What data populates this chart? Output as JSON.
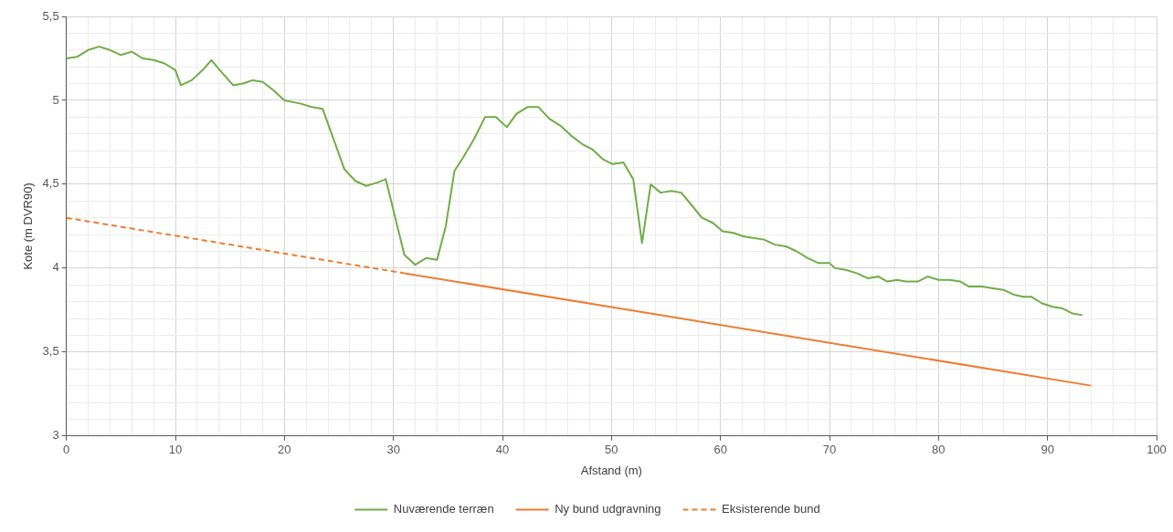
{
  "chart_data": {
    "type": "line",
    "xlabel": "Afstand (m)",
    "ylabel": "Kote (m DVR90)",
    "xlim": [
      0,
      100
    ],
    "xticks": [
      0,
      {
        "value": 2,
        "label": null
      },
      {
        "value": 4,
        "label": null
      },
      {
        "value": 6,
        "label": null
      },
      {
        "value": 8,
        "label": null
      },
      10,
      {
        "value": 12,
        "label": null
      },
      {
        "value": 14,
        "label": null
      },
      {
        "value": 16,
        "label": null
      },
      {
        "value": 18,
        "label": null
      },
      20,
      {
        "value": 22,
        "label": null
      },
      {
        "value": 24,
        "label": null
      },
      {
        "value": 26,
        "label": null
      },
      {
        "value": 28,
        "label": null
      },
      30,
      {
        "value": 32,
        "label": null
      },
      {
        "value": 34,
        "label": null
      },
      {
        "value": 36,
        "label": null
      },
      {
        "value": 38,
        "label": null
      },
      40,
      {
        "value": 42,
        "label": null
      },
      {
        "value": 44,
        "label": null
      },
      {
        "value": 46,
        "label": null
      },
      {
        "value": 48,
        "label": null
      },
      50,
      {
        "value": 52,
        "label": null
      },
      {
        "value": 54,
        "label": null
      },
      {
        "value": 56,
        "label": null
      },
      {
        "value": 58,
        "label": null
      },
      60,
      {
        "value": 62,
        "label": null
      },
      {
        "value": 64,
        "label": null
      },
      {
        "value": 66,
        "label": null
      },
      {
        "value": 68,
        "label": null
      },
      70,
      {
        "value": 72,
        "label": null
      },
      {
        "value": 74,
        "label": null
      },
      {
        "value": 76,
        "label": null
      },
      {
        "value": 78,
        "label": null
      },
      80,
      {
        "value": 82,
        "label": null
      },
      {
        "value": 84,
        "label": null
      },
      {
        "value": 86,
        "label": null
      },
      {
        "value": 88,
        "label": null
      },
      90,
      {
        "value": 92,
        "label": null
      },
      {
        "value": 94,
        "label": null
      },
      {
        "value": 96,
        "label": null
      },
      {
        "value": 98,
        "label": null
      },
      100
    ],
    "ylim": [
      3,
      5.5
    ],
    "yticks": [
      3,
      {
        "value": 3.1,
        "label": null
      },
      {
        "value": 3.2,
        "label": null
      },
      {
        "value": 3.3,
        "label": null
      },
      {
        "value": 3.4,
        "label": null
      },
      {
        "value": 3.5,
        "label": "3,5"
      },
      {
        "value": 3.6,
        "label": null
      },
      {
        "value": 3.7,
        "label": null
      },
      {
        "value": 3.8,
        "label": null
      },
      {
        "value": 3.9,
        "label": null
      },
      4,
      {
        "value": 4.1,
        "label": null
      },
      {
        "value": 4.2,
        "label": null
      },
      {
        "value": 4.3,
        "label": null
      },
      {
        "value": 4.4,
        "label": null
      },
      {
        "value": 4.5,
        "label": "4,5"
      },
      {
        "value": 4.6,
        "label": null
      },
      {
        "value": 4.7,
        "label": null
      },
      {
        "value": 4.8,
        "label": null
      },
      {
        "value": 4.9,
        "label": null
      },
      5,
      {
        "value": 5.1,
        "label": null
      },
      {
        "value": 5.2,
        "label": null
      },
      {
        "value": 5.3,
        "label": null
      },
      {
        "value": 5.4,
        "label": null
      },
      {
        "value": 5.5,
        "label": "5,5"
      }
    ],
    "grid": true,
    "legend": "bottom",
    "marker": "none",
    "series": [
      {
        "name": "Nuværende terræn",
        "color": "#70ad47",
        "line_style": "solid",
        "x": [
          0,
          1,
          2,
          3,
          4,
          5,
          6,
          7,
          8,
          9,
          10,
          10.5,
          11.5,
          12.5,
          13.3,
          14.2,
          15.3,
          16.2,
          17.1,
          18,
          19,
          20,
          21.5,
          22.5,
          23.5,
          25.5,
          26.5,
          27.5,
          28.5,
          29.3,
          31,
          32,
          33,
          34,
          34.8,
          35.6,
          36.4,
          37.4,
          38.4,
          39.4,
          40.4,
          41.3,
          42.3,
          43.3,
          44.3,
          45.3,
          46.3,
          47.3,
          48.2,
          49.2,
          50.1,
          51.1,
          52,
          52.8,
          53.6,
          54.5,
          55.5,
          56.4,
          57.3,
          58.3,
          59.3,
          60.2,
          61.2,
          62.1,
          63,
          64,
          65,
          66,
          67,
          68,
          69,
          70,
          70.5,
          71.5,
          72.5,
          73.5,
          74.5,
          75.3,
          76.2,
          77,
          78.1,
          79,
          80,
          81,
          82,
          82.8,
          84,
          85,
          86,
          87,
          87.8,
          88.5,
          89.5,
          90.5,
          91.4,
          92.3,
          93.2
        ],
        "values": [
          5.25,
          5.26,
          5.3,
          5.32,
          5.3,
          5.27,
          5.29,
          5.25,
          5.24,
          5.22,
          5.18,
          5.09,
          5.12,
          5.18,
          5.24,
          5.17,
          5.09,
          5.1,
          5.12,
          5.11,
          5.06,
          5,
          4.98,
          4.96,
          4.95,
          4.59,
          4.52,
          4.49,
          4.51,
          4.53,
          4.08,
          4.02,
          4.06,
          4.05,
          4.25,
          4.58,
          4.66,
          4.77,
          4.9,
          4.9,
          4.84,
          4.92,
          4.96,
          4.96,
          4.89,
          4.85,
          4.79,
          4.74,
          4.71,
          4.65,
          4.62,
          4.63,
          4.53,
          4.15,
          4.5,
          4.45,
          4.46,
          4.45,
          4.38,
          4.3,
          4.27,
          4.22,
          4.21,
          4.19,
          4.18,
          4.17,
          4.14,
          4.13,
          4.1,
          4.06,
          4.03,
          4.03,
          4,
          3.99,
          3.97,
          3.94,
          3.95,
          3.92,
          3.93,
          3.92,
          3.92,
          3.95,
          3.93,
          3.93,
          3.92,
          3.89,
          3.89,
          3.88,
          3.87,
          3.84,
          3.83,
          3.83,
          3.79,
          3.77,
          3.76,
          3.73,
          3.72
        ]
      },
      {
        "name": "Ny bund udgravning",
        "color": "#ed7d31",
        "line_style": "solid",
        "x": [
          31,
          94
        ],
        "values": [
          3.97,
          3.3
        ]
      },
      {
        "name": "Eksisterende bund",
        "color": "#ed7d31",
        "line_style": "dashed",
        "x": [
          0,
          31
        ],
        "values": [
          4.3,
          3.97
        ]
      }
    ]
  }
}
